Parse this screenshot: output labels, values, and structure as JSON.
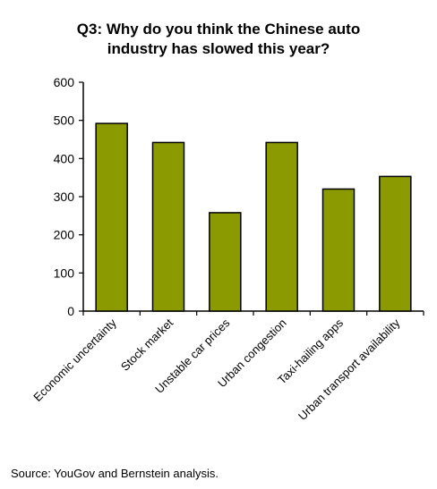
{
  "chart_data": {
    "type": "bar",
    "title_lines": [
      "Q3: Why do you think the Chinese auto",
      "industry has slowed this year?"
    ],
    "categories": [
      "Economic uncertainty",
      "Stock market",
      "Unstable car prices",
      "Urban congestion",
      "Taxi-hailing apps",
      "Urban transport availability"
    ],
    "values": [
      492,
      442,
      258,
      442,
      320,
      353
    ],
    "ylim": [
      0,
      600
    ],
    "yticks": [
      "0",
      "100",
      "200",
      "300",
      "400",
      "500",
      "600"
    ],
    "xlabel": "",
    "ylabel": "",
    "grid": false,
    "legend": "none",
    "bar_color": "#8a9a00"
  },
  "footer": {
    "source": "Source: YouGov and Bernstein analysis."
  }
}
